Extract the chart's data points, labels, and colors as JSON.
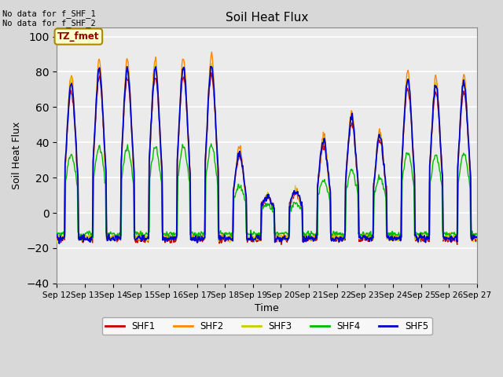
{
  "title": "Soil Heat Flux",
  "xlabel": "Time",
  "ylabel": "Soil Heat Flux",
  "ylim": [
    -40,
    105
  ],
  "yticks": [
    -40,
    -20,
    0,
    20,
    40,
    60,
    80,
    100
  ],
  "x_labels": [
    "Sep 12",
    "Sep 13",
    "Sep 14",
    "Sep 15",
    "Sep 16",
    "Sep 17",
    "Sep 18",
    "Sep 19",
    "Sep 20",
    "Sep 21",
    "Sep 22",
    "Sep 23",
    "Sep 24",
    "Sep 25",
    "Sep 26",
    "Sep 27"
  ],
  "annotation_text": "No data for f_SHF_1\nNo data for f_SHF_2",
  "tz_label": "TZ_fmet",
  "legend_entries": [
    "SHF1",
    "SHF2",
    "SHF3",
    "SHF4",
    "SHF5"
  ],
  "line_colors": [
    "#cc0000",
    "#ff8800",
    "#cccc00",
    "#00bb00",
    "#0000cc"
  ],
  "background_color": "#d8d8d8",
  "plot_bg_color": "#ebebeb",
  "pts_per_day": 48,
  "n_days": 15,
  "day_peak_amplitudes": [
    75,
    83,
    83,
    84,
    84,
    85,
    35,
    10,
    12,
    42,
    55,
    45,
    77,
    74,
    75
  ],
  "night_base": -15
}
